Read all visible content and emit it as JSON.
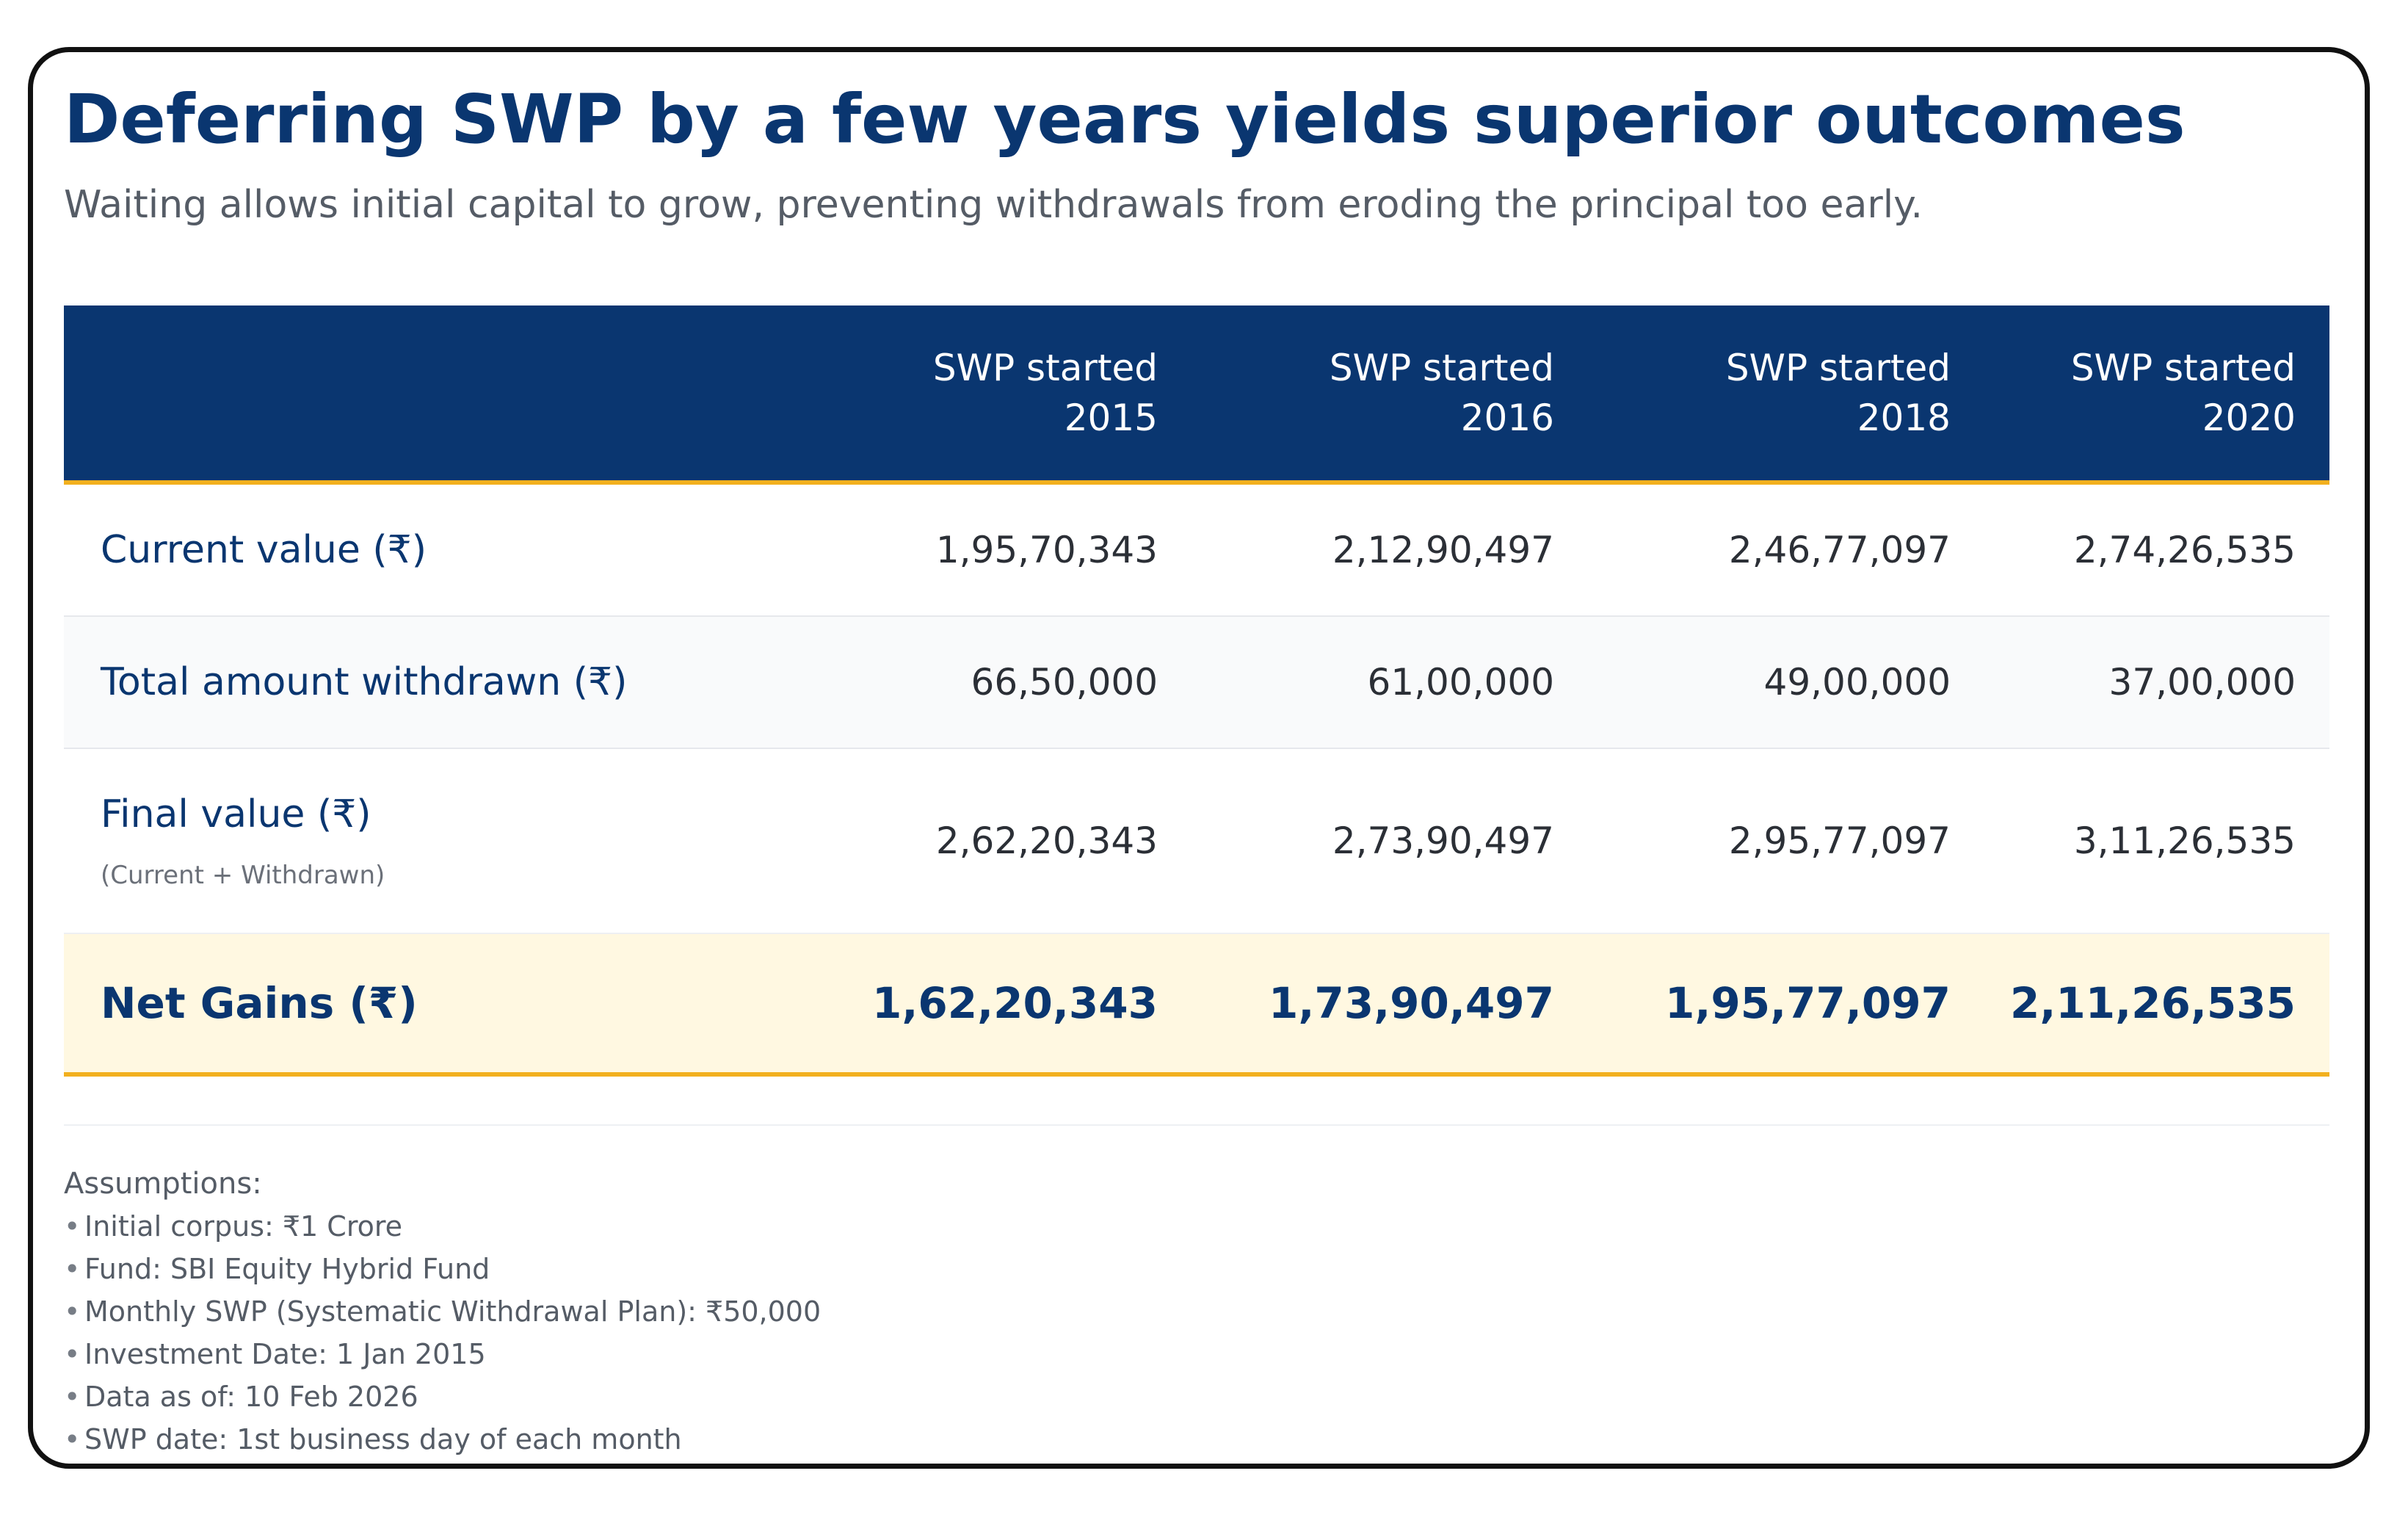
{
  "header": {
    "title": "Deferring SWP by a few years yields superior outcomes",
    "subtitle": "Waiting allows initial capital to grow, preventing withdrawals from eroding the principal too early."
  },
  "table": {
    "columns": [
      {
        "line1": "SWP started",
        "line2": "2015"
      },
      {
        "line1": "SWP started",
        "line2": "2016"
      },
      {
        "line1": "SWP started",
        "line2": "2018"
      },
      {
        "line1": "SWP started",
        "line2": "2020"
      }
    ],
    "rows": {
      "current": {
        "label": "Current value (₹)",
        "values": [
          "1,95,70,343",
          "2,12,90,497",
          "2,46,77,097",
          "2,74,26,535"
        ]
      },
      "withdrawn": {
        "label": "Total amount withdrawn (₹)",
        "values": [
          "66,50,000",
          "61,00,000",
          "49,00,000",
          "37,00,000"
        ]
      },
      "final": {
        "label": "Final value (₹)",
        "note": "(Current + Withdrawn)",
        "values": [
          "2,62,20,343",
          "2,73,90,497",
          "2,95,77,097",
          "3,11,26,535"
        ]
      },
      "net": {
        "label": "Net Gains (₹)",
        "values": [
          "1,62,20,343",
          "1,73,90,497",
          "1,95,77,097",
          "2,11,26,535"
        ]
      }
    }
  },
  "assumptions": {
    "title": "Assumptions:",
    "bullet": "•",
    "items": [
      "Initial corpus: ₹1 Crore",
      "Fund: SBI Equity Hybrid Fund",
      "Monthly SWP (Systematic Withdrawal Plan): ₹50,000",
      "Investment Date: 1 Jan 2015",
      "Data as of: 10 Feb 2026",
      "SWP date: 1st business day of each month"
    ]
  },
  "colors": {
    "navy": "#0a3670",
    "gold": "#f2b01e",
    "net_gains_background": "#fff8e1"
  }
}
